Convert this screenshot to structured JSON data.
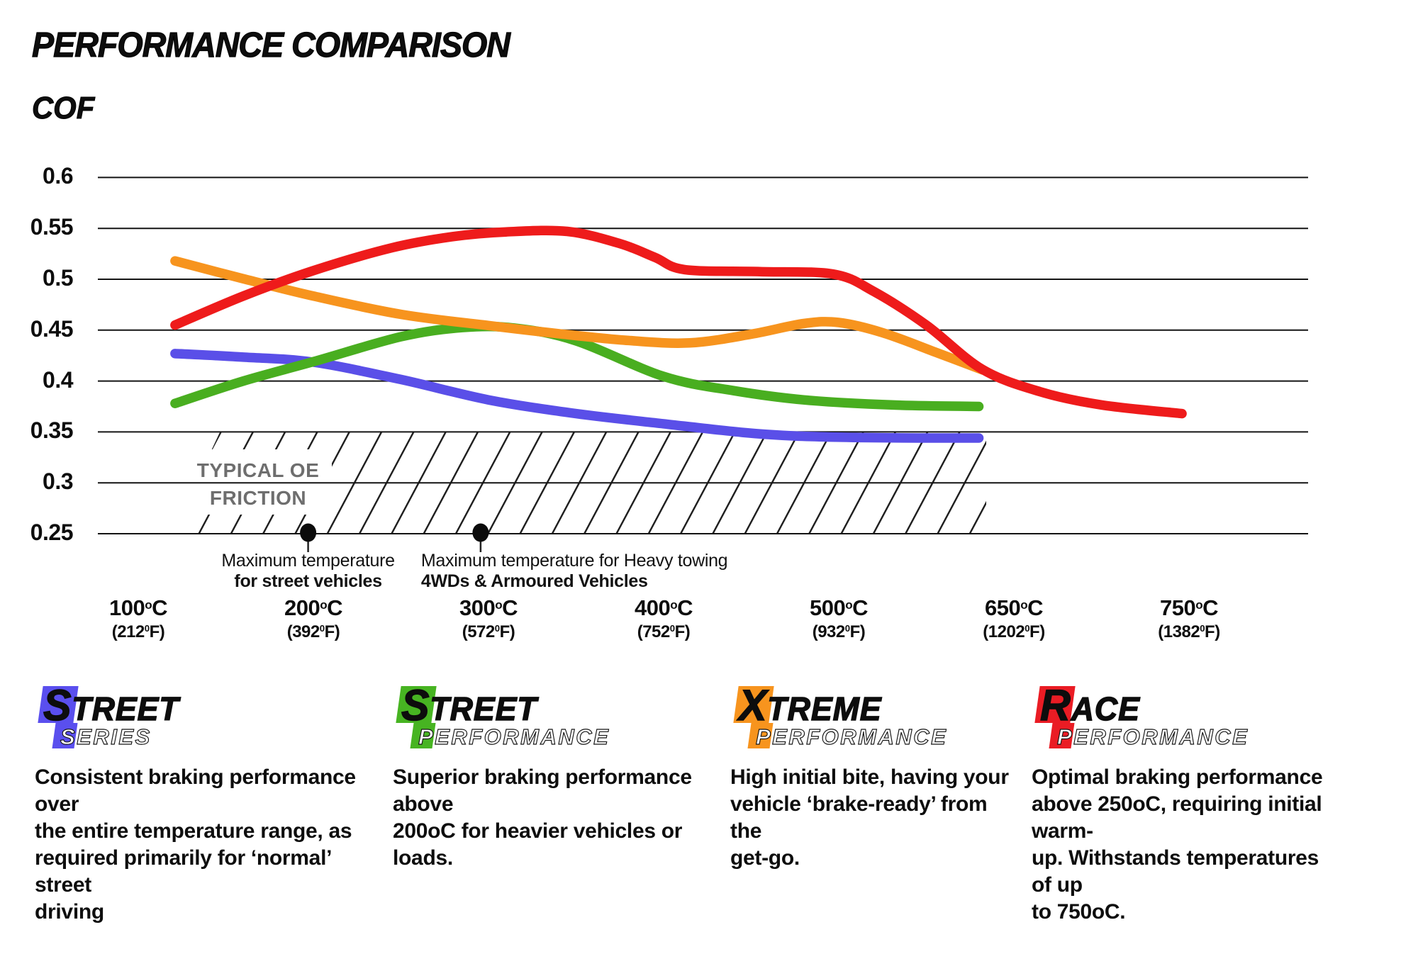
{
  "page": {
    "title": "PERFORMANCE COMPARISON",
    "y_axis_title": "COF"
  },
  "chart_data": {
    "type": "line",
    "title": "PERFORMANCE COMPARISON",
    "ylabel": "COF",
    "ylim": [
      0.25,
      0.6
    ],
    "grid": true,
    "y_axis": {
      "ticks": [
        {
          "label": "0.6",
          "value": 0.6
        },
        {
          "label": "0.55",
          "value": 0.55
        },
        {
          "label": "0.5",
          "value": 0.5
        },
        {
          "label": "0.45",
          "value": 0.45
        },
        {
          "label": "0.4",
          "value": 0.4
        },
        {
          "label": "0.35",
          "value": 0.35
        },
        {
          "label": "0.3",
          "value": 0.3
        },
        {
          "label": "0.25",
          "value": 0.25
        }
      ]
    },
    "x_axis": {
      "categories_c": [
        100,
        200,
        300,
        400,
        500,
        650,
        750
      ],
      "ticks": [
        {
          "c_main": "100",
          "c_sup": "o",
          "c_end": "C",
          "f_main": "(212",
          "f_sup": "0",
          "f_end": "F)"
        },
        {
          "c_main": "200",
          "c_sup": "o",
          "c_end": "C",
          "f_main": "(392",
          "f_sup": "0",
          "f_end": "F)"
        },
        {
          "c_main": "300",
          "c_sup": "o",
          "c_end": "C",
          "f_main": "(572",
          "f_sup": "0",
          "f_end": "F)"
        },
        {
          "c_main": "400",
          "c_sup": "o",
          "c_end": "C",
          "f_main": "(752",
          "f_sup": "0",
          "f_end": "F)"
        },
        {
          "c_main": "500",
          "c_sup": "o",
          "c_end": "C",
          "f_main": "(932",
          "f_sup": "0",
          "f_end": "F)"
        },
        {
          "c_main": "650",
          "c_sup": "o",
          "c_end": "C",
          "f_main": "(1202",
          "f_sup": "0",
          "f_end": "F)"
        },
        {
          "c_main": "750",
          "c_sup": "o",
          "c_end": "C",
          "f_main": "(1382",
          "f_sup": "0",
          "f_end": "F)"
        }
      ]
    },
    "series": [
      {
        "name": "Street Series",
        "color": "#5a4fe8",
        "points": [
          [
            0.21,
            0.427
          ],
          [
            0.6,
            0.4235
          ],
          [
            1.0,
            0.4185
          ],
          [
            1.5,
            0.4015
          ],
          [
            2.0,
            0.3815
          ],
          [
            2.5,
            0.368
          ],
          [
            3.0,
            0.358
          ],
          [
            3.45,
            0.3495
          ],
          [
            3.75,
            0.346
          ],
          [
            4.1,
            0.3445
          ],
          [
            4.45,
            0.344
          ],
          [
            4.8,
            0.344
          ]
        ]
      },
      {
        "name": "Street Performance",
        "color": "#49ae20",
        "points": [
          [
            0.21,
            0.378
          ],
          [
            0.6,
            0.4
          ],
          [
            1.0,
            0.419
          ],
          [
            1.5,
            0.4435
          ],
          [
            1.85,
            0.4525
          ],
          [
            2.15,
            0.452
          ],
          [
            2.5,
            0.4395
          ],
          [
            3.0,
            0.4045
          ],
          [
            3.4,
            0.3905
          ],
          [
            3.8,
            0.3815
          ],
          [
            4.3,
            0.3765
          ],
          [
            4.8,
            0.375
          ]
        ]
      },
      {
        "name": "Xtreme Performance",
        "color": "#f7941e",
        "points": [
          [
            0.21,
            0.518
          ],
          [
            0.6,
            0.5005
          ],
          [
            1.0,
            0.4835
          ],
          [
            1.5,
            0.4655
          ],
          [
            2.0,
            0.4545
          ],
          [
            2.4,
            0.4465
          ],
          [
            2.8,
            0.4398
          ],
          [
            3.15,
            0.4375
          ],
          [
            3.5,
            0.446
          ],
          [
            3.8,
            0.4565
          ],
          [
            4.0,
            0.4575
          ],
          [
            4.25,
            0.4475
          ],
          [
            4.55,
            0.4285
          ],
          [
            4.82,
            0.411
          ]
        ]
      },
      {
        "name": "Race Performance",
        "color": "#ee1b1b",
        "points": [
          [
            0.21,
            0.455
          ],
          [
            0.6,
            0.4835
          ],
          [
            1.0,
            0.5085
          ],
          [
            1.45,
            0.531
          ],
          [
            1.8,
            0.542
          ],
          [
            2.1,
            0.5465
          ],
          [
            2.45,
            0.547
          ],
          [
            2.75,
            0.535
          ],
          [
            2.95,
            0.5215
          ],
          [
            3.12,
            0.5095
          ],
          [
            3.55,
            0.5075
          ],
          [
            3.97,
            0.505
          ],
          [
            4.2,
            0.488
          ],
          [
            4.5,
            0.455
          ],
          [
            4.82,
            0.4115
          ],
          [
            5.15,
            0.3895
          ],
          [
            5.5,
            0.3765
          ],
          [
            5.96,
            0.368
          ]
        ]
      }
    ],
    "oe_zone": {
      "label_line1": "TYPICAL OE",
      "label_line2": "FRICTION",
      "v_top": 0.35,
      "v_bottom": 0.25
    },
    "annotations": [
      {
        "u": 0.97,
        "align": "center",
        "line1": "Maximum temperature",
        "line2": "for street vehicles"
      },
      {
        "u": 1.955,
        "align": "left",
        "line1": "Maximum temperature for Heavy towing",
        "line2": "4WDs & Armoured Vehicles"
      }
    ]
  },
  "legend": {
    "products": [
      {
        "badge_color": "#5a4fee",
        "word1": "STREET",
        "word2": "SERIES",
        "desc_lines": [
          "Consistent braking performance over",
          "the entire temperature range, as",
          "required primarily for ‘normal’ street",
          "driving"
        ]
      },
      {
        "badge_color": "#47b422",
        "word1": "STREET",
        "word2": "PERFORMANCE",
        "desc_lines": [
          "Superior braking performance above",
          "200oC for heavier vehicles or loads."
        ]
      },
      {
        "badge_color": "#f7941e",
        "word1": "XTREME",
        "word2": "PERFORMANCE",
        "desc_lines": [
          "High initial bite, having your",
          "vehicle ‘brake-ready’ from the",
          "get-go."
        ]
      },
      {
        "badge_color": "#ea1c24",
        "word1": "RACE",
        "word2": "PERFORMANCE",
        "desc_lines": [
          "Optimal braking performance",
          "above 250oC, requiring initial warm-",
          "up. Withstands temperatures of up",
          "to 750oC."
        ]
      }
    ]
  },
  "colors": {
    "grid": "#141414",
    "marker": "#0b0b0b",
    "oe_text": "#6e6e6e",
    "hatch_line": "#1c1c1c"
  }
}
